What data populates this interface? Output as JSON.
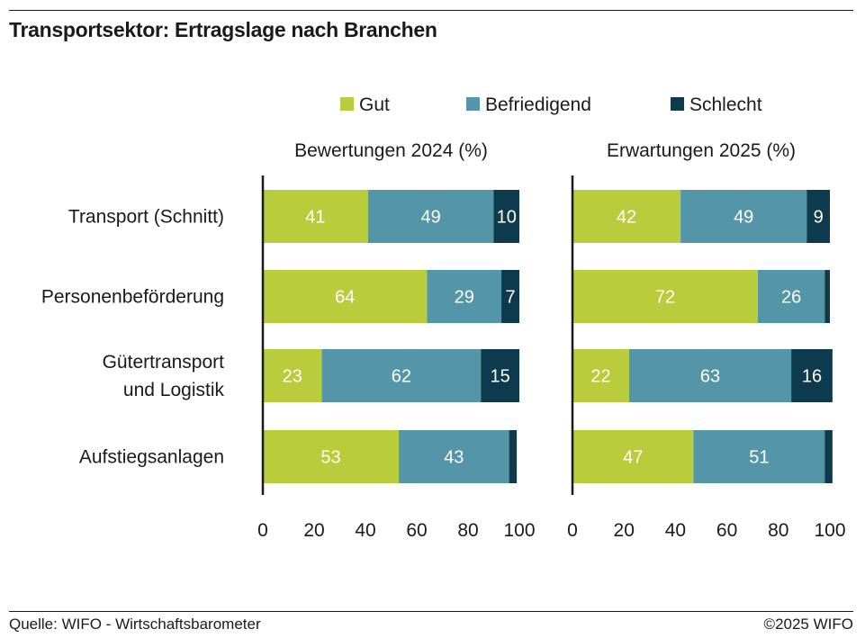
{
  "title": "Transportsektor: Ertragslage nach Branchen",
  "footer": {
    "source": "Quelle: WIFO - Wirtschaftsbarometer",
    "copyright": "©2025 WIFO"
  },
  "colors": {
    "gut": "#b8cc3c",
    "befriedigend": "#5496a8",
    "schlecht": "#0d3b4d",
    "axis": "#1a1a1a",
    "grid": "#d9d9d9"
  },
  "chart_data": {
    "type": "bar",
    "orientation": "horizontal",
    "stacked": true,
    "legend_position": "top",
    "categories": [
      "Transport (Schnitt)",
      "Personenbeförderung",
      "Gütertransport\nund Logistik",
      "Aufstiegsanlagen"
    ],
    "series_names": [
      "Gut",
      "Befriedigend",
      "Schlecht"
    ],
    "xlim": [
      0,
      100
    ],
    "xticks": [
      0,
      20,
      40,
      60,
      80,
      100
    ],
    "panels": [
      {
        "title": "Bewertungen 2024 (%)",
        "series": [
          {
            "name": "Gut",
            "values": [
              41,
              64,
              23,
              53
            ],
            "labels": [
              "41",
              "64",
              "23",
              "53"
            ]
          },
          {
            "name": "Befriedigend",
            "values": [
              49,
              29,
              62,
              43
            ],
            "labels": [
              "49",
              "29",
              "62",
              "43"
            ]
          },
          {
            "name": "Schlecht",
            "values": [
              10,
              7,
              15,
              3
            ],
            "labels": [
              "10",
              "7",
              "15",
              ""
            ]
          }
        ]
      },
      {
        "title": "Erwartungen 2025 (%)",
        "series": [
          {
            "name": "Gut",
            "values": [
              42,
              72,
              22,
              47
            ],
            "labels": [
              "42",
              "72",
              "22",
              "47"
            ]
          },
          {
            "name": "Befriedigend",
            "values": [
              49,
              26,
              63,
              51
            ],
            "labels": [
              "49",
              "26",
              "63",
              "51"
            ]
          },
          {
            "name": "Schlecht",
            "values": [
              9,
              2,
              16,
              3
            ],
            "labels": [
              "9",
              "",
              "16",
              ""
            ]
          }
        ]
      }
    ]
  }
}
